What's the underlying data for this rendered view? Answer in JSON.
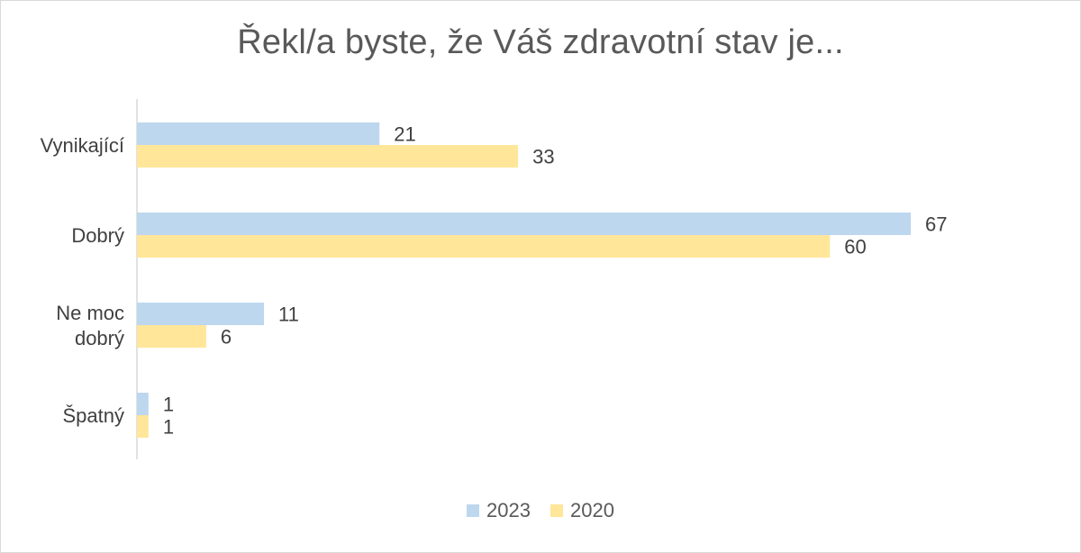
{
  "chart_data": {
    "type": "bar",
    "orientation": "horizontal",
    "title": "Řekl/a byste, že Váš zdravotní stav je...",
    "categories": [
      [
        "Vynikající"
      ],
      [
        "Dobrý"
      ],
      [
        "Ne moc",
        "dobrý"
      ],
      [
        "Špatný"
      ]
    ],
    "series": [
      {
        "name": "2023",
        "color": "#bdd7ee",
        "values": [
          21,
          67,
          11,
          1
        ]
      },
      {
        "name": "2020",
        "color": "#ffe699",
        "values": [
          33,
          60,
          6,
          1
        ]
      }
    ],
    "xlim": [
      0,
      70
    ],
    "grid": false,
    "data_labels": true,
    "legend_position": "bottom"
  }
}
